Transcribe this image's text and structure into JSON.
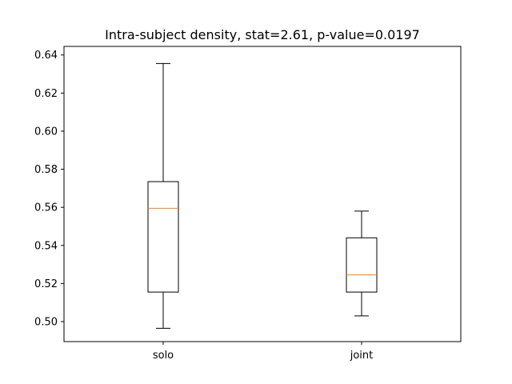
{
  "chart_data": {
    "type": "boxplot",
    "title": "Intra-subject density, stat=2.61, p-value=0.0197",
    "xlabel": "",
    "ylabel": "",
    "categories": [
      "solo",
      "joint"
    ],
    "ylim": [
      0.4895,
      0.6445
    ],
    "yticks": [
      0.5,
      0.52,
      0.54,
      0.56,
      0.58,
      0.6,
      0.62,
      0.64
    ],
    "ytick_labels": [
      "0.50",
      "0.52",
      "0.54",
      "0.56",
      "0.58",
      "0.60",
      "0.62",
      "0.64"
    ],
    "boxes": [
      {
        "name": "solo",
        "whisker_low": 0.4965,
        "q1": 0.5155,
        "median": 0.5595,
        "q3": 0.5735,
        "whisker_high": 0.6355
      },
      {
        "name": "joint",
        "whisker_low": 0.503,
        "q1": 0.5155,
        "median": 0.5245,
        "q3": 0.544,
        "whisker_high": 0.558
      }
    ],
    "grid": false,
    "colors": {
      "box": "#000000",
      "median": "#ff7f0e",
      "background": "#ffffff"
    }
  }
}
